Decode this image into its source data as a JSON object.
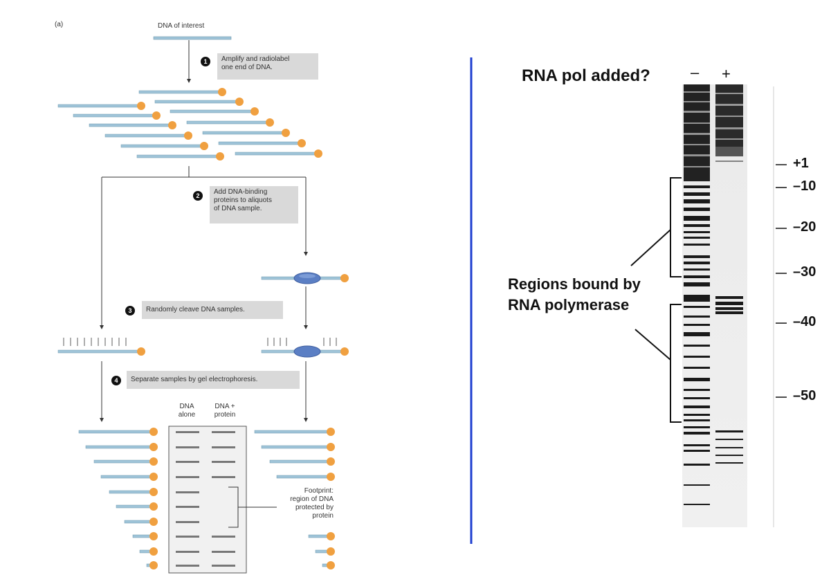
{
  "panel_a": {
    "panel_label": "(a)",
    "dna_of_interest": "DNA of interest",
    "step1_num": "1",
    "step1_line1": "Amplify and radiolabel",
    "step1_line2": "one end of DNA.",
    "step2_num": "2",
    "step2_line1": "Add DNA-binding",
    "step2_line2": "proteins to aliquots",
    "step2_line3": "of DNA sample.",
    "step3_num": "3",
    "step3_text": "Randomly cleave DNA samples.",
    "step4_num": "4",
    "step4_text": "Separate samples by gel electrophoresis.",
    "gel_col1_line1": "DNA",
    "gel_col1_line2": "alone",
    "gel_col2_line1": "DNA +",
    "gel_col2_line2": "protein",
    "footprint_line1": "Footprint:",
    "footprint_line2": "region of DNA",
    "footprint_line3": "protected by",
    "footprint_line4": "protein"
  },
  "panel_b": {
    "question": "RNA pol added?",
    "lane_minus": "–",
    "lane_plus": "+",
    "regions_line1": "Regions bound by",
    "regions_line2": "RNA polymerase",
    "positions": [
      "+1",
      "–10",
      "–20",
      "–30",
      "–40",
      "–50"
    ]
  },
  "colors": {
    "dna_strand": "#9fc4d8",
    "label_end": "#f0a040",
    "protein": "#5b7fc4",
    "divider": "#1f3fd0",
    "step_box": "#d9d9d9"
  }
}
